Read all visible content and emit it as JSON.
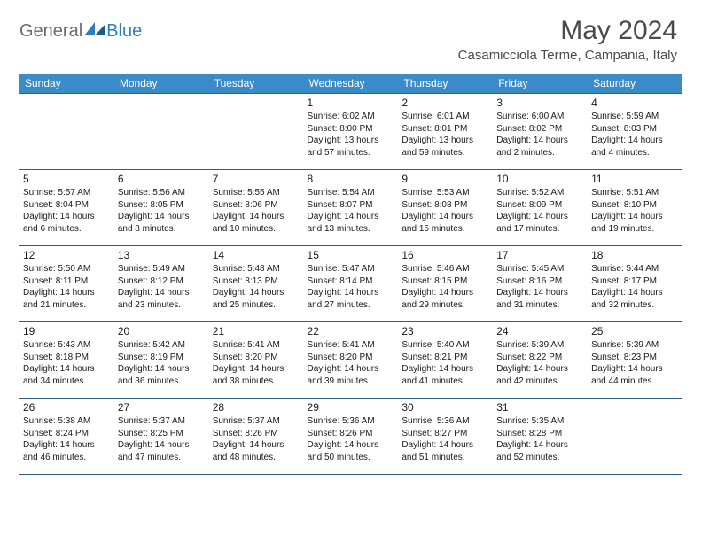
{
  "logo": {
    "general": "General",
    "blue": "Blue"
  },
  "title": "May 2024",
  "location": "Casamicciola Terme, Campania, Italy",
  "header_bg": "#3b8bc8",
  "border_color": "#2d5f8a",
  "days_of_week": [
    "Sunday",
    "Monday",
    "Tuesday",
    "Wednesday",
    "Thursday",
    "Friday",
    "Saturday"
  ],
  "weeks": [
    [
      null,
      null,
      null,
      {
        "n": "1",
        "sr": "6:02 AM",
        "ss": "8:00 PM",
        "dl": "13 hours and 57 minutes."
      },
      {
        "n": "2",
        "sr": "6:01 AM",
        "ss": "8:01 PM",
        "dl": "13 hours and 59 minutes."
      },
      {
        "n": "3",
        "sr": "6:00 AM",
        "ss": "8:02 PM",
        "dl": "14 hours and 2 minutes."
      },
      {
        "n": "4",
        "sr": "5:59 AM",
        "ss": "8:03 PM",
        "dl": "14 hours and 4 minutes."
      }
    ],
    [
      {
        "n": "5",
        "sr": "5:57 AM",
        "ss": "8:04 PM",
        "dl": "14 hours and 6 minutes."
      },
      {
        "n": "6",
        "sr": "5:56 AM",
        "ss": "8:05 PM",
        "dl": "14 hours and 8 minutes."
      },
      {
        "n": "7",
        "sr": "5:55 AM",
        "ss": "8:06 PM",
        "dl": "14 hours and 10 minutes."
      },
      {
        "n": "8",
        "sr": "5:54 AM",
        "ss": "8:07 PM",
        "dl": "14 hours and 13 minutes."
      },
      {
        "n": "9",
        "sr": "5:53 AM",
        "ss": "8:08 PM",
        "dl": "14 hours and 15 minutes."
      },
      {
        "n": "10",
        "sr": "5:52 AM",
        "ss": "8:09 PM",
        "dl": "14 hours and 17 minutes."
      },
      {
        "n": "11",
        "sr": "5:51 AM",
        "ss": "8:10 PM",
        "dl": "14 hours and 19 minutes."
      }
    ],
    [
      {
        "n": "12",
        "sr": "5:50 AM",
        "ss": "8:11 PM",
        "dl": "14 hours and 21 minutes."
      },
      {
        "n": "13",
        "sr": "5:49 AM",
        "ss": "8:12 PM",
        "dl": "14 hours and 23 minutes."
      },
      {
        "n": "14",
        "sr": "5:48 AM",
        "ss": "8:13 PM",
        "dl": "14 hours and 25 minutes."
      },
      {
        "n": "15",
        "sr": "5:47 AM",
        "ss": "8:14 PM",
        "dl": "14 hours and 27 minutes."
      },
      {
        "n": "16",
        "sr": "5:46 AM",
        "ss": "8:15 PM",
        "dl": "14 hours and 29 minutes."
      },
      {
        "n": "17",
        "sr": "5:45 AM",
        "ss": "8:16 PM",
        "dl": "14 hours and 31 minutes."
      },
      {
        "n": "18",
        "sr": "5:44 AM",
        "ss": "8:17 PM",
        "dl": "14 hours and 32 minutes."
      }
    ],
    [
      {
        "n": "19",
        "sr": "5:43 AM",
        "ss": "8:18 PM",
        "dl": "14 hours and 34 minutes."
      },
      {
        "n": "20",
        "sr": "5:42 AM",
        "ss": "8:19 PM",
        "dl": "14 hours and 36 minutes."
      },
      {
        "n": "21",
        "sr": "5:41 AM",
        "ss": "8:20 PM",
        "dl": "14 hours and 38 minutes."
      },
      {
        "n": "22",
        "sr": "5:41 AM",
        "ss": "8:20 PM",
        "dl": "14 hours and 39 minutes."
      },
      {
        "n": "23",
        "sr": "5:40 AM",
        "ss": "8:21 PM",
        "dl": "14 hours and 41 minutes."
      },
      {
        "n": "24",
        "sr": "5:39 AM",
        "ss": "8:22 PM",
        "dl": "14 hours and 42 minutes."
      },
      {
        "n": "25",
        "sr": "5:39 AM",
        "ss": "8:23 PM",
        "dl": "14 hours and 44 minutes."
      }
    ],
    [
      {
        "n": "26",
        "sr": "5:38 AM",
        "ss": "8:24 PM",
        "dl": "14 hours and 46 minutes."
      },
      {
        "n": "27",
        "sr": "5:37 AM",
        "ss": "8:25 PM",
        "dl": "14 hours and 47 minutes."
      },
      {
        "n": "28",
        "sr": "5:37 AM",
        "ss": "8:26 PM",
        "dl": "14 hours and 48 minutes."
      },
      {
        "n": "29",
        "sr": "5:36 AM",
        "ss": "8:26 PM",
        "dl": "14 hours and 50 minutes."
      },
      {
        "n": "30",
        "sr": "5:36 AM",
        "ss": "8:27 PM",
        "dl": "14 hours and 51 minutes."
      },
      {
        "n": "31",
        "sr": "5:35 AM",
        "ss": "8:28 PM",
        "dl": "14 hours and 52 minutes."
      },
      null
    ]
  ],
  "labels": {
    "sunrise": "Sunrise:",
    "sunset": "Sunset:",
    "daylight": "Daylight:"
  }
}
